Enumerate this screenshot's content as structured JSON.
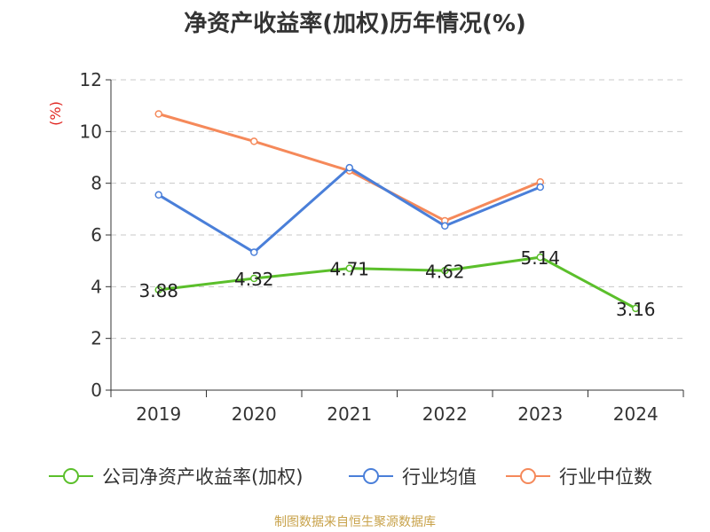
{
  "title": "净资产收益率(加权)历年情况(%)",
  "source": "制图数据来自恒生聚源数据库",
  "chart_data": {
    "type": "line",
    "title": "净资产收益率(加权)历年情况(%)",
    "ylabel": "(%)",
    "ylim": [
      0,
      12
    ],
    "yticks": [
      0,
      2,
      4,
      6,
      8,
      10,
      12
    ],
    "grid": true,
    "legend_position": "bottom",
    "categories": [
      "2019",
      "2020",
      "2021",
      "2022",
      "2023",
      "2024"
    ],
    "series": [
      {
        "name": "公司净资产收益率(加权)",
        "color": "#5bbf2b",
        "values": [
          3.88,
          4.32,
          4.71,
          4.62,
          5.14,
          3.16
        ],
        "labels": [
          "3.88",
          "4.32",
          "4.71",
          "4.62",
          "5.14",
          "3.16"
        ]
      },
      {
        "name": "行业均值",
        "color": "#4a7fd9",
        "values": [
          7.55,
          5.33,
          8.6,
          6.35,
          7.85,
          null
        ]
      },
      {
        "name": "行业中位数",
        "color": "#f5895a",
        "values": [
          10.68,
          9.62,
          8.48,
          6.55,
          8.05,
          null
        ]
      }
    ]
  }
}
